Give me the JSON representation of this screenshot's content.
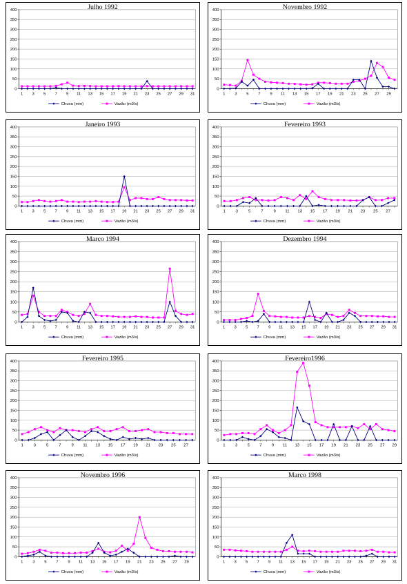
{
  "legend": {
    "rain": "Chuva (mm)",
    "flow": "Vazão (m3/s)"
  },
  "colors": {
    "rain": "#000080",
    "flow": "#ff00ff",
    "plot_bg": "#ffffff",
    "grid": "#a0a0a0"
  },
  "chart_data": [
    {
      "type": "line",
      "title": "Julho 1992",
      "ylim": [
        0,
        400
      ],
      "y_ticks": [
        0,
        50,
        100,
        150,
        200,
        250,
        300,
        350,
        400
      ],
      "x": [
        1,
        2,
        3,
        4,
        5,
        6,
        7,
        8,
        9,
        10,
        11,
        12,
        13,
        14,
        15,
        16,
        17,
        18,
        19,
        20,
        21,
        22,
        23,
        24,
        25,
        26,
        27,
        28,
        29,
        30,
        31
      ],
      "x_ticks": [
        1,
        3,
        5,
        7,
        9,
        11,
        13,
        15,
        17,
        19,
        21,
        23,
        25,
        27,
        29,
        31
      ],
      "series": [
        {
          "name": "Chuva (mm)",
          "values": [
            0,
            0,
            0,
            0,
            0,
            0,
            5,
            0,
            0,
            0,
            0,
            0,
            0,
            0,
            0,
            0,
            0,
            0,
            0,
            0,
            0,
            0,
            38,
            0,
            0,
            0,
            0,
            0,
            0,
            0,
            0
          ]
        },
        {
          "name": "Vazão (m3/s)",
          "values": [
            12,
            12,
            12,
            12,
            12,
            12,
            14,
            22,
            30,
            15,
            13,
            14,
            13,
            12,
            12,
            12,
            12,
            13,
            12,
            12,
            12,
            12,
            13,
            12,
            12,
            12,
            12,
            12,
            12,
            12,
            12
          ]
        }
      ]
    },
    {
      "type": "line",
      "title": "Novembro 1992",
      "ylim": [
        0,
        400
      ],
      "y_ticks": [
        0,
        50,
        100,
        150,
        200,
        250,
        300,
        350,
        400
      ],
      "x": [
        1,
        2,
        3,
        4,
        5,
        6,
        7,
        8,
        9,
        10,
        11,
        12,
        13,
        14,
        15,
        16,
        17,
        18,
        19,
        20,
        21,
        22,
        23,
        24,
        25,
        26,
        27,
        28,
        29,
        30
      ],
      "x_ticks": [
        1,
        3,
        5,
        7,
        9,
        11,
        13,
        15,
        17,
        19,
        21,
        23,
        25,
        27,
        29
      ],
      "series": [
        {
          "name": "Chuva (mm)",
          "values": [
            0,
            0,
            2,
            35,
            15,
            45,
            0,
            0,
            0,
            0,
            0,
            0,
            0,
            0,
            0,
            2,
            25,
            0,
            0,
            0,
            0,
            0,
            45,
            45,
            0,
            140,
            55,
            10,
            10,
            0
          ]
        },
        {
          "name": "Vazão (m3/s)",
          "values": [
            20,
            18,
            15,
            40,
            145,
            70,
            50,
            35,
            32,
            30,
            28,
            25,
            24,
            22,
            20,
            22,
            30,
            30,
            28,
            25,
            25,
            25,
            35,
            40,
            50,
            65,
            130,
            110,
            55,
            45
          ]
        }
      ]
    },
    {
      "type": "line",
      "title": "Janeiro 1993",
      "ylim": [
        0,
        400
      ],
      "y_ticks": [
        0,
        50,
        100,
        150,
        200,
        250,
        300,
        350,
        400
      ],
      "x": [
        1,
        2,
        3,
        4,
        5,
        6,
        7,
        8,
        9,
        10,
        11,
        12,
        13,
        14,
        15,
        16,
        17,
        18,
        19,
        20,
        21,
        22,
        23,
        24,
        25,
        26,
        27,
        28,
        29,
        30,
        31
      ],
      "x_ticks": [
        1,
        3,
        5,
        7,
        9,
        11,
        13,
        15,
        17,
        19,
        21,
        23,
        25,
        27,
        29,
        31
      ],
      "series": [
        {
          "name": "Chuva (mm)",
          "values": [
            0,
            0,
            0,
            0,
            0,
            0,
            0,
            0,
            0,
            0,
            0,
            0,
            0,
            0,
            0,
            0,
            0,
            0,
            150,
            0,
            0,
            0,
            0,
            0,
            0,
            0,
            0,
            0,
            0,
            0,
            0
          ]
        },
        {
          "name": "Vazão (m3/s)",
          "values": [
            20,
            20,
            25,
            30,
            25,
            22,
            25,
            30,
            22,
            22,
            20,
            22,
            22,
            25,
            22,
            20,
            20,
            22,
            95,
            30,
            40,
            40,
            35,
            35,
            45,
            35,
            30,
            30,
            30,
            28,
            28
          ]
        }
      ]
    },
    {
      "type": "line",
      "title": "Fevereiro 1993",
      "ylim": [
        0,
        400
      ],
      "y_ticks": [
        0,
        50,
        100,
        150,
        200,
        250,
        300,
        350,
        400
      ],
      "x": [
        1,
        2,
        3,
        4,
        5,
        6,
        7,
        8,
        9,
        10,
        11,
        12,
        13,
        14,
        15,
        16,
        17,
        18,
        19,
        20,
        21,
        22,
        23,
        24,
        25,
        26,
        27,
        28
      ],
      "x_ticks": [
        1,
        3,
        5,
        7,
        9,
        11,
        13,
        15,
        17,
        19,
        21,
        23,
        25,
        27
      ],
      "series": [
        {
          "name": "Chuva (mm)",
          "values": [
            0,
            0,
            0,
            20,
            15,
            40,
            0,
            0,
            0,
            0,
            0,
            0,
            0,
            50,
            0,
            5,
            0,
            0,
            0,
            0,
            0,
            0,
            30,
            45,
            0,
            0,
            15,
            30
          ]
        },
        {
          "name": "Vazão (m3/s)",
          "values": [
            25,
            25,
            30,
            40,
            45,
            30,
            30,
            28,
            30,
            45,
            40,
            30,
            55,
            35,
            75,
            45,
            35,
            30,
            30,
            30,
            28,
            28,
            30,
            45,
            30,
            30,
            40,
            40
          ]
        }
      ]
    },
    {
      "type": "line",
      "title": "Março 1994",
      "ylim": [
        0,
        400
      ],
      "y_ticks": [
        0,
        50,
        100,
        150,
        200,
        250,
        300,
        350,
        400
      ],
      "x": [
        1,
        2,
        3,
        4,
        5,
        6,
        7,
        8,
        9,
        10,
        11,
        12,
        13,
        14,
        15,
        16,
        17,
        18,
        19,
        20,
        21,
        22,
        23,
        24,
        25,
        26,
        27,
        28,
        29,
        30,
        31
      ],
      "x_ticks": [
        1,
        3,
        5,
        7,
        9,
        11,
        13,
        15,
        17,
        19,
        21,
        23,
        25,
        27,
        29,
        31
      ],
      "series": [
        {
          "name": "Chuva (mm)",
          "values": [
            0,
            25,
            170,
            30,
            10,
            5,
            10,
            50,
            45,
            5,
            0,
            50,
            45,
            0,
            0,
            0,
            0,
            0,
            0,
            0,
            0,
            0,
            0,
            0,
            0,
            0,
            100,
            30,
            0,
            0,
            0
          ]
        },
        {
          "name": "Vazão (m3/s)",
          "values": [
            35,
            40,
            130,
            50,
            30,
            30,
            30,
            60,
            50,
            35,
            30,
            40,
            90,
            35,
            30,
            30,
            28,
            25,
            25,
            25,
            28,
            25,
            25,
            22,
            22,
            22,
            265,
            55,
            40,
            35,
            40
          ]
        }
      ]
    },
    {
      "type": "line",
      "title": "Dezembro 1994",
      "ylim": [
        0,
        400
      ],
      "y_ticks": [
        0,
        50,
        100,
        150,
        200,
        250,
        300,
        350,
        400
      ],
      "x": [
        1,
        2,
        3,
        4,
        5,
        6,
        7,
        8,
        9,
        10,
        11,
        12,
        13,
        14,
        15,
        16,
        17,
        18,
        19,
        20,
        21,
        22,
        23,
        24,
        25,
        26,
        27,
        28,
        29,
        30,
        31
      ],
      "x_ticks": [
        1,
        3,
        5,
        7,
        9,
        11,
        13,
        15,
        17,
        19,
        21,
        23,
        25,
        27,
        29,
        31
      ],
      "series": [
        {
          "name": "Chuva (mm)",
          "values": [
            0,
            0,
            0,
            0,
            5,
            0,
            5,
            40,
            0,
            0,
            0,
            0,
            0,
            0,
            0,
            100,
            10,
            0,
            45,
            0,
            0,
            10,
            45,
            30,
            0,
            0,
            0,
            0,
            0,
            0,
            0
          ]
        },
        {
          "name": "Vazão (m3/s)",
          "values": [
            10,
            10,
            10,
            15,
            20,
            30,
            140,
            55,
            30,
            28,
            25,
            25,
            22,
            22,
            22,
            30,
            25,
            20,
            40,
            35,
            25,
            30,
            60,
            45,
            30,
            30,
            30,
            28,
            28,
            25,
            25
          ]
        }
      ]
    },
    {
      "type": "line",
      "title": "Fevereiro 1995",
      "ylim": [
        0,
        400
      ],
      "y_ticks": [
        0,
        50,
        100,
        150,
        200,
        250,
        300,
        350,
        400
      ],
      "x": [
        1,
        2,
        3,
        4,
        5,
        6,
        7,
        8,
        9,
        10,
        11,
        12,
        13,
        14,
        15,
        16,
        17,
        18,
        19,
        20,
        21,
        22,
        23,
        24,
        25,
        26,
        27,
        28
      ],
      "x_ticks": [
        1,
        3,
        5,
        7,
        9,
        11,
        13,
        15,
        17,
        19,
        21,
        23,
        25,
        27
      ],
      "series": [
        {
          "name": "Chuva (mm)",
          "values": [
            0,
            0,
            10,
            30,
            40,
            0,
            25,
            50,
            15,
            0,
            20,
            45,
            40,
            20,
            5,
            0,
            15,
            5,
            10,
            5,
            10,
            0,
            0,
            0,
            0,
            0,
            0,
            0
          ]
        },
        {
          "name": "Vazão (m3/s)",
          "values": [
            30,
            40,
            55,
            65,
            50,
            40,
            60,
            50,
            50,
            45,
            40,
            55,
            65,
            45,
            45,
            55,
            65,
            45,
            45,
            50,
            55,
            40,
            40,
            35,
            35,
            30,
            30,
            30
          ]
        }
      ]
    },
    {
      "type": "line",
      "title": "Fevereiro1996",
      "ylim": [
        0,
        400
      ],
      "y_ticks": [
        0,
        50,
        100,
        150,
        200,
        250,
        300,
        350,
        400
      ],
      "x": [
        1,
        2,
        3,
        4,
        5,
        6,
        7,
        8,
        9,
        10,
        11,
        12,
        13,
        14,
        15,
        16,
        17,
        18,
        19,
        20,
        21,
        22,
        23,
        24,
        25,
        26,
        27,
        28,
        29
      ],
      "x_ticks": [
        1,
        3,
        5,
        7,
        9,
        11,
        13,
        15,
        17,
        19,
        21,
        23,
        25,
        27,
        29
      ],
      "series": [
        {
          "name": "Chuva (mm)",
          "values": [
            0,
            0,
            0,
            15,
            5,
            0,
            20,
            55,
            40,
            15,
            10,
            0,
            165,
            95,
            80,
            0,
            0,
            0,
            80,
            0,
            0,
            70,
            0,
            0,
            70,
            0,
            0,
            0,
            0
          ]
        },
        {
          "name": "Vazão (m3/s)",
          "values": [
            25,
            30,
            30,
            35,
            35,
            30,
            55,
            75,
            50,
            35,
            50,
            75,
            345,
            390,
            275,
            90,
            75,
            65,
            65,
            65,
            65,
            70,
            60,
            80,
            55,
            80,
            55,
            50,
            45
          ]
        }
      ]
    },
    {
      "type": "line",
      "title": "Novembro 1996",
      "ylim": [
        0,
        400
      ],
      "y_ticks": [
        0,
        50,
        100,
        150,
        200,
        250,
        300,
        350,
        400
      ],
      "x": [
        1,
        2,
        3,
        4,
        5,
        6,
        7,
        8,
        9,
        10,
        11,
        12,
        13,
        14,
        15,
        16,
        17,
        18,
        19,
        20,
        21,
        22,
        23,
        24,
        25,
        26,
        27,
        28,
        29,
        30
      ],
      "x_ticks": [
        1,
        3,
        5,
        7,
        9,
        11,
        13,
        15,
        17,
        19,
        21,
        23,
        25,
        27,
        29
      ],
      "series": [
        {
          "name": "Chuva (mm)",
          "values": [
            0,
            5,
            10,
            25,
            5,
            0,
            0,
            0,
            0,
            0,
            0,
            0,
            20,
            70,
            20,
            5,
            10,
            25,
            40,
            20,
            0,
            0,
            0,
            0,
            0,
            0,
            5,
            0,
            0,
            0
          ]
        },
        {
          "name": "Vazão (m3/s)",
          "values": [
            15,
            18,
            25,
            35,
            30,
            20,
            20,
            18,
            18,
            18,
            20,
            20,
            28,
            40,
            25,
            22,
            30,
            55,
            30,
            65,
            200,
            95,
            45,
            35,
            28,
            28,
            25,
            25,
            25,
            22
          ]
        }
      ]
    },
    {
      "type": "line",
      "title": "Março 1998",
      "ylim": [
        0,
        400
      ],
      "y_ticks": [
        0,
        50,
        100,
        150,
        200,
        250,
        300,
        350,
        400
      ],
      "x": [
        1,
        2,
        3,
        4,
        5,
        6,
        7,
        8,
        9,
        10,
        11,
        12,
        13,
        14,
        15,
        16,
        17,
        18,
        19,
        20,
        21,
        22,
        23,
        24,
        25,
        26,
        27,
        28,
        29,
        30,
        31
      ],
      "x_ticks": [
        1,
        3,
        5,
        7,
        9,
        11,
        13,
        15,
        17,
        19,
        21,
        23,
        25,
        27,
        29,
        31
      ],
      "series": [
        {
          "name": "Chuva (mm)",
          "values": [
            0,
            0,
            0,
            0,
            0,
            0,
            0,
            0,
            0,
            0,
            0,
            70,
            110,
            15,
            15,
            15,
            0,
            0,
            0,
            0,
            0,
            0,
            0,
            0,
            0,
            5,
            15,
            0,
            0,
            0,
            0
          ]
        },
        {
          "name": "Vazão (m3/s)",
          "values": [
            35,
            35,
            32,
            30,
            28,
            25,
            25,
            25,
            25,
            25,
            25,
            35,
            50,
            30,
            28,
            30,
            28,
            25,
            25,
            25,
            25,
            30,
            30,
            30,
            28,
            30,
            35,
            25,
            25,
            22,
            22
          ]
        }
      ]
    }
  ]
}
